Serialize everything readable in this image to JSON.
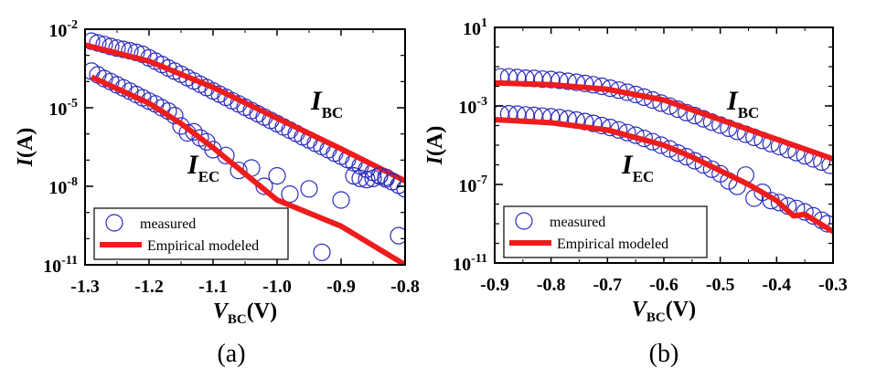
{
  "chart_data": [
    {
      "type": "scatter",
      "panel_label": "(a)",
      "xlabel_main": "V",
      "xlabel_sub": "BC",
      "xlabel_unit": "(V)",
      "ylabel_main": "I",
      "ylabel_unit": "(A)",
      "log_y": true,
      "xlim": [
        -1.3,
        -0.8
      ],
      "ylim_exp": [
        -11,
        -2
      ],
      "x_ticks": [
        "-1.3",
        "-1.2",
        "-1.1",
        "-1.0",
        "-0.9",
        "-0.8"
      ],
      "y_ticks": [
        {
          "base": "10",
          "exp": "-2"
        },
        {
          "base": "10",
          "exp": "-5"
        },
        {
          "base": "10",
          "exp": "-8"
        },
        {
          "base": "10",
          "exp": "-11"
        }
      ],
      "grid": false,
      "legend_position": "bottom-left",
      "legend": [
        "measured",
        "Empirical modeled"
      ],
      "annotations": [
        {
          "main": "I",
          "sub": "BC",
          "series": "I_BC"
        },
        {
          "main": "I",
          "sub": "EC",
          "series": "I_EC"
        }
      ],
      "series": [
        {
          "name": "I_BC measured",
          "marker": "open-circle",
          "color": "#2b2bbf",
          "x": [
            -1.29,
            -1.28,
            -1.27,
            -1.26,
            -1.25,
            -1.24,
            -1.23,
            -1.22,
            -1.21,
            -1.2,
            -1.19,
            -1.18,
            -1.17,
            -1.16,
            -1.15,
            -1.14,
            -1.13,
            -1.12,
            -1.11,
            -1.1,
            -1.09,
            -1.08,
            -1.07,
            -1.06,
            -1.05,
            -1.04,
            -1.03,
            -1.02,
            -1.01,
            -1.0,
            -0.99,
            -0.98,
            -0.97,
            -0.96,
            -0.95,
            -0.94,
            -0.93,
            -0.92,
            -0.91,
            -0.9,
            -0.89,
            -0.88,
            -0.87,
            -0.86,
            -0.85,
            -0.84,
            -0.83,
            -0.82,
            -0.81,
            -0.8
          ],
          "y": [
            0.0035,
            0.003,
            0.0026,
            0.0022,
            0.0019,
            0.0017,
            0.0015,
            0.0013,
            0.0011,
            0.0008,
            0.0006,
            0.00045,
            0.00033,
            0.00025,
            0.00019,
            0.00014,
            0.000105,
            7.9e-05,
            5.9e-05,
            4.4e-05,
            3.3e-05,
            2.5e-05,
            1.85e-05,
            1.4e-05,
            1.05e-05,
            7.8e-06,
            5.9e-06,
            4.4e-06,
            3.3e-06,
            2.5e-06,
            1.85e-06,
            1.4e-06,
            1.05e-06,
            7.8e-07,
            5.9e-07,
            4.4e-07,
            3.3e-07,
            2.5e-07,
            1.85e-07,
            1.4e-07,
            1.05e-07,
            7.9e-08,
            6e-08,
            4.5e-08,
            3.4e-08,
            2.6e-08,
            1.9e-08,
            1.5e-08,
            1.1e-08,
            8e-09
          ]
        },
        {
          "name": "I_BC modeled",
          "marker": "line",
          "color": "#ee1c1c",
          "x": [
            -1.3,
            -1.2,
            -1.1,
            -1.0,
            -0.9,
            -0.8
          ],
          "y": [
            0.0025,
            0.0006,
            6e-05,
            4e-06,
            2.7e-07,
            1.6e-08
          ]
        },
        {
          "name": "I_EC measured",
          "marker": "open-circle",
          "color": "#2b2bbf",
          "x": [
            -1.29,
            -1.28,
            -1.27,
            -1.26,
            -1.25,
            -1.24,
            -1.23,
            -1.22,
            -1.21,
            -1.2,
            -1.19,
            -1.18,
            -1.17,
            -1.16,
            -1.15,
            -1.14,
            -1.13,
            -1.12,
            -1.11,
            -1.1,
            -1.08,
            -1.06,
            -1.04,
            -1.02,
            -1.0,
            -0.98,
            -0.95,
            -0.93,
            -0.9,
            -0.88,
            -0.87,
            -0.86,
            -0.85,
            -0.84,
            -0.83,
            -0.82,
            -0.81
          ],
          "y": [
            0.00025,
            0.00018,
            0.00013,
            0.0001,
            7.5e-05,
            5.7e-05,
            4.3e-05,
            3.2e-05,
            2.4e-05,
            1.8e-05,
            1.4e-05,
            1e-05,
            7.5e-06,
            5e-06,
            2e-06,
            1.1e-06,
            1.2e-06,
            7e-07,
            5e-07,
            2.5e-07,
            1.5e-07,
            4e-08,
            5e-08,
            1e-08,
            2.5e-08,
            5e-09,
            8e-09,
            3e-11,
            3e-09,
            2.5e-08,
            2e-08,
            1.8e-08,
            2e-08,
            2.5e-08,
            2.2e-08,
            1.5e-08,
            1.3e-10
          ]
        },
        {
          "name": "I_EC modeled",
          "marker": "line",
          "color": "#ee1c1c",
          "x": [
            -1.29,
            -1.2,
            -1.15,
            -1.1,
            -1.0,
            -0.9,
            -0.8
          ],
          "y": [
            0.00015,
            1.5e-05,
            2.5e-06,
            3e-07,
            3e-09,
            3e-10,
            1e-11
          ]
        }
      ]
    },
    {
      "type": "scatter",
      "panel_label": "(b)",
      "xlabel_main": "V",
      "xlabel_sub": "BC",
      "xlabel_unit": "(V)",
      "ylabel_main": "I",
      "ylabel_unit": "(A)",
      "log_y": true,
      "xlim": [
        -0.9,
        -0.3
      ],
      "ylim_exp": [
        -11,
        1
      ],
      "x_ticks": [
        "-0.9",
        "-0.8",
        "-0.7",
        "-0.6",
        "-0.5",
        "-0.4",
        "-0.3"
      ],
      "y_ticks": [
        {
          "base": "10",
          "exp": "1"
        },
        {
          "base": "10",
          "exp": "-3"
        },
        {
          "base": "10",
          "exp": "-7"
        },
        {
          "base": "10",
          "exp": "-11"
        }
      ],
      "grid": false,
      "legend_position": "bottom-left",
      "legend": [
        "measured",
        "Empirical modeled"
      ],
      "annotations": [
        {
          "main": "I",
          "sub": "BC",
          "series": "I_BC"
        },
        {
          "main": "I",
          "sub": "EC",
          "series": "I_EC"
        }
      ],
      "series": [
        {
          "name": "I_BC measured",
          "marker": "open-circle",
          "color": "#2b2bbf",
          "x": [
            -0.89,
            -0.875,
            -0.86,
            -0.845,
            -0.83,
            -0.815,
            -0.8,
            -0.785,
            -0.77,
            -0.755,
            -0.74,
            -0.725,
            -0.71,
            -0.695,
            -0.68,
            -0.665,
            -0.65,
            -0.635,
            -0.62,
            -0.605,
            -0.59,
            -0.575,
            -0.56,
            -0.545,
            -0.53,
            -0.515,
            -0.5,
            -0.485,
            -0.47,
            -0.455,
            -0.44,
            -0.425,
            -0.41,
            -0.395,
            -0.38,
            -0.365,
            -0.35,
            -0.335,
            -0.32,
            -0.305
          ],
          "y": [
            0.03,
            0.03,
            0.028,
            0.026,
            0.025,
            0.023,
            0.022,
            0.02,
            0.018,
            0.016,
            0.014,
            0.012,
            0.01,
            0.008,
            0.0064,
            0.005,
            0.0038,
            0.0028,
            0.002,
            0.0014,
            0.00098,
            0.00068,
            0.00046,
            0.00032,
            0.00022,
            0.00015,
            0.000105,
            7.3e-05,
            5.1e-05,
            3.6e-05,
            2.5e-05,
            1.75e-05,
            1.2e-05,
            8.5e-06,
            6e-06,
            4.2e-06,
            2.9e-06,
            2e-06,
            1.4e-06,
            9.5e-07
          ]
        },
        {
          "name": "I_BC modeled",
          "marker": "line",
          "color": "#ee1c1c",
          "x": [
            -0.9,
            -0.8,
            -0.7,
            -0.6,
            -0.5,
            -0.4,
            -0.3
          ],
          "y": [
            0.015,
            0.012,
            0.007,
            0.002,
            0.0002,
            2e-05,
            2e-06
          ]
        },
        {
          "name": "I_EC measured",
          "marker": "open-circle",
          "color": "#2b2bbf",
          "x": [
            -0.89,
            -0.875,
            -0.86,
            -0.845,
            -0.83,
            -0.815,
            -0.8,
            -0.785,
            -0.77,
            -0.755,
            -0.74,
            -0.725,
            -0.71,
            -0.695,
            -0.68,
            -0.665,
            -0.65,
            -0.635,
            -0.62,
            -0.605,
            -0.59,
            -0.575,
            -0.56,
            -0.545,
            -0.53,
            -0.515,
            -0.5,
            -0.485,
            -0.47,
            -0.455,
            -0.44,
            -0.425,
            -0.41,
            -0.395,
            -0.38,
            -0.365,
            -0.35,
            -0.335,
            -0.32,
            -0.31
          ],
          "y": [
            0.0004,
            0.0004,
            0.00038,
            0.00035,
            0.00033,
            0.0003,
            0.00028,
            0.00025,
            0.00022,
            0.00019,
            0.00016,
            0.00013,
            0.0001,
            8e-05,
            6e-05,
            4.4e-05,
            3.2e-05,
            2.2e-05,
            1.5e-05,
            1e-05,
            6.5e-06,
            4e-06,
            2.6e-06,
            1.6e-06,
            1e-06,
            6e-07,
            3.5e-07,
            1.5e-07,
            8e-08,
            3e-07,
            2e-08,
            4e-08,
            1.5e-08,
            1.2e-08,
            8e-09,
            6e-09,
            4e-09,
            2.5e-09,
            1.5e-09,
            1e-09
          ]
        },
        {
          "name": "I_EC modeled",
          "marker": "line",
          "color": "#ee1c1c",
          "x": [
            -0.9,
            -0.8,
            -0.7,
            -0.6,
            -0.55,
            -0.5,
            -0.45,
            -0.4,
            -0.37,
            -0.35,
            -0.3
          ],
          "y": [
            0.0002,
            0.00014,
            6e-05,
            1e-05,
            2.5e-06,
            5e-07,
            1e-07,
            1.5e-08,
            2.5e-09,
            3e-09,
            4e-10
          ]
        }
      ]
    }
  ]
}
